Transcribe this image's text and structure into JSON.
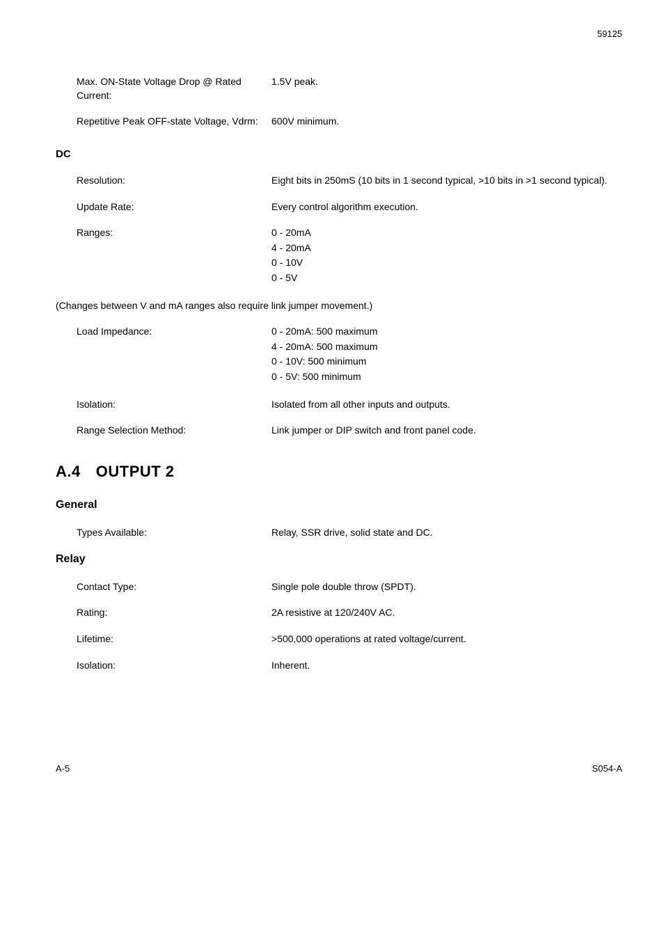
{
  "pageNumberTop": "59125",
  "specs1": [
    {
      "label": "Max. ON-State Voltage Drop @ Rated Current:",
      "value": "1.5V peak."
    },
    {
      "label": "Repetitive Peak OFF-state Voltage, Vdrm:",
      "value": "600V minimum."
    }
  ],
  "dcHeader": "DC",
  "dcSpecs": [
    {
      "label": "Resolution:",
      "value": "Eight bits in 250mS (10 bits in 1 second typical, >10 bits in >1 second typical)."
    },
    {
      "label": "Update Rate:",
      "value": "Every control algorithm execution."
    }
  ],
  "rangesLabel": "Ranges:",
  "rangesValues": [
    "0 - 20mA",
    "4 - 20mA",
    "0 - 10V",
    "0 - 5V"
  ],
  "changesNote": "(Changes between V and mA ranges also require link jumper movement.)",
  "loadImpedanceLabel": "Load Impedance:",
  "loadImpedanceValues": [
    "0 - 20mA: 500   maximum",
    "4 - 20mA: 500   maximum",
    "0 - 10V: 500   minimum",
    "0 - 5V: 500   minimum"
  ],
  "afterLoadSpecs": [
    {
      "label": "Isolation:",
      "value": "Isolated from all other inputs and outputs."
    },
    {
      "label": "Range Selection Method:",
      "value": "Link jumper or DIP switch and front panel code."
    }
  ],
  "a4": {
    "num": "A.4",
    "title": "OUTPUT 2"
  },
  "generalHeader": "General",
  "generalSpecs": [
    {
      "label": "Types Available:",
      "value": "Relay, SSR drive, solid state and DC."
    }
  ],
  "relayHeader": "Relay",
  "relaySpecs": [
    {
      "label": "Contact Type:",
      "value": "Single pole double throw (SPDT)."
    },
    {
      "label": "Rating:",
      "value": "2A resistive at 120/240V AC."
    },
    {
      "label": "Lifetime:",
      "value": ">500,000 operations at rated voltage/current."
    },
    {
      "label": "Isolation:",
      "value": "Inherent."
    }
  ],
  "footer": {
    "left": "A-5",
    "right": "S054-A"
  }
}
